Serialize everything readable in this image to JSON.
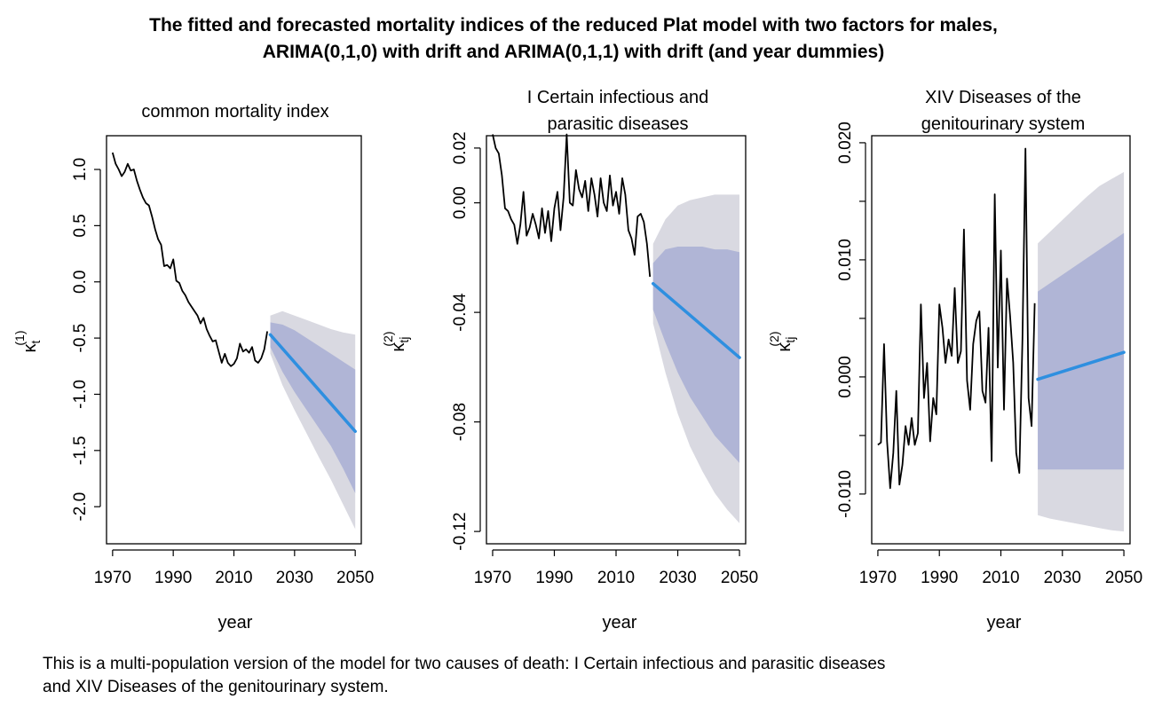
{
  "figure": {
    "title_line1": "The fitted and forecasted mortality indices of the reduced Plat model with two factors for males,",
    "title_line2": "ARIMA(0,1,0) with drift and ARIMA(0,1,1) with drift (and year dummies)",
    "caption_line1": "This is a multi-population version of the model for two causes of death: I Certain infectious and parasitic diseases",
    "caption_line2": "and XIV Diseases of the genitourinary system."
  },
  "colors": {
    "fitted": "#000000",
    "forecast": "#2e8fe0",
    "band80": "#b0b5d6",
    "band95": "#d9d9e1"
  },
  "chart_data": [
    {
      "type": "line",
      "title": "common mortality index",
      "xlabel": "year",
      "ylabel": "κt(1)",
      "ylabel_main": "κ",
      "ylabel_sub": "t",
      "ylabel_sup": "(1)",
      "xlim": [
        1968,
        2052
      ],
      "ylim": [
        -2.33,
        1.3
      ],
      "xticks": [
        1970,
        1990,
        2010,
        2030,
        2050
      ],
      "yticks": [
        -2.0,
        -1.5,
        -1.0,
        -0.5,
        0.0,
        0.5,
        1.0
      ],
      "ytick_labels": [
        "-2.0",
        "-1.5",
        "-1.0",
        "-0.5",
        "0.0",
        "0.5",
        "1.0"
      ],
      "grid": false,
      "fitted": {
        "x": [
          1970,
          1971,
          1972,
          1973,
          1974,
          1975,
          1976,
          1977,
          1978,
          1979,
          1980,
          1981,
          1982,
          1983,
          1984,
          1985,
          1986,
          1987,
          1988,
          1989,
          1990,
          1991,
          1992,
          1993,
          1994,
          1995,
          1996,
          1997,
          1998,
          1999,
          2000,
          2001,
          2002,
          2003,
          2004,
          2005,
          2006,
          2007,
          2008,
          2009,
          2010,
          2011,
          2012,
          2013,
          2014,
          2015,
          2016,
          2017,
          2018,
          2019,
          2020,
          2021
        ],
        "y": [
          1.15,
          1.05,
          1.0,
          0.94,
          0.98,
          1.05,
          0.99,
          1.0,
          0.9,
          0.82,
          0.75,
          0.7,
          0.68,
          0.58,
          0.47,
          0.38,
          0.33,
          0.14,
          0.15,
          0.12,
          0.2,
          0.01,
          -0.01,
          -0.08,
          -0.12,
          -0.18,
          -0.22,
          -0.26,
          -0.3,
          -0.37,
          -0.32,
          -0.42,
          -0.48,
          -0.53,
          -0.52,
          -0.62,
          -0.72,
          -0.64,
          -0.72,
          -0.75,
          -0.73,
          -0.68,
          -0.55,
          -0.62,
          -0.6,
          -0.63,
          -0.58,
          -0.7,
          -0.72,
          -0.68,
          -0.6,
          -0.44
        ]
      },
      "forecast": {
        "x": [
          2022,
          2050
        ],
        "y": [
          -0.47,
          -1.33
        ]
      },
      "pi80": {
        "x": [
          2022,
          2026,
          2030,
          2034,
          2038,
          2042,
          2046,
          2050
        ],
        "upper": [
          -0.36,
          -0.38,
          -0.43,
          -0.5,
          -0.57,
          -0.64,
          -0.71,
          -0.78
        ],
        "lower": [
          -0.58,
          -0.8,
          -0.98,
          -1.14,
          -1.3,
          -1.46,
          -1.66,
          -1.88
        ]
      },
      "pi95": {
        "x": [
          2022,
          2026,
          2030,
          2034,
          2038,
          2042,
          2046,
          2050
        ],
        "upper": [
          -0.3,
          -0.26,
          -0.3,
          -0.34,
          -0.38,
          -0.42,
          -0.45,
          -0.47
        ],
        "lower": [
          -0.64,
          -0.92,
          -1.14,
          -1.35,
          -1.56,
          -1.76,
          -1.98,
          -2.2
        ]
      }
    },
    {
      "type": "line",
      "title": "I Certain infectious and parasitic diseases",
      "title_line1": "I Certain infectious and",
      "title_line2": "parasitic diseases",
      "xlabel": "year",
      "ylabel": "κtj(2)",
      "ylabel_main": "κ",
      "ylabel_sub": "tj",
      "ylabel_sup": "(2)",
      "xlim": [
        1968,
        2052
      ],
      "ylim": [
        -0.1245,
        0.0245
      ],
      "xticks": [
        1970,
        1990,
        2010,
        2030,
        2050
      ],
      "yticks": [
        -0.12,
        -0.08,
        -0.04,
        0.0,
        0.02
      ],
      "ytick_labels": [
        "-0.12",
        "-0.08",
        "-0.04",
        "0.00",
        "0.02"
      ],
      "grid": false,
      "fitted": {
        "x": [
          1970,
          1971,
          1972,
          1973,
          1974,
          1975,
          1976,
          1977,
          1978,
          1979,
          1980,
          1981,
          1982,
          1983,
          1984,
          1985,
          1986,
          1987,
          1988,
          1989,
          1990,
          1991,
          1992,
          1993,
          1994,
          1995,
          1996,
          1997,
          1998,
          1999,
          2000,
          2001,
          2002,
          2003,
          2004,
          2005,
          2006,
          2007,
          2008,
          2009,
          2010,
          2011,
          2012,
          2013,
          2014,
          2015,
          2016,
          2017,
          2018,
          2019,
          2020,
          2021
        ],
        "y": [
          0.025,
          0.02,
          0.018,
          0.01,
          -0.002,
          -0.003,
          -0.006,
          -0.008,
          -0.015,
          -0.008,
          0.004,
          -0.012,
          -0.009,
          -0.004,
          -0.008,
          -0.013,
          -0.002,
          -0.011,
          -0.003,
          -0.014,
          -0.002,
          0.004,
          -0.01,
          0.002,
          0.025,
          0.0,
          -0.001,
          0.012,
          0.005,
          0.002,
          0.008,
          -0.003,
          0.009,
          0.003,
          -0.005,
          0.009,
          0.0,
          -0.003,
          0.01,
          -0.001,
          0.004,
          -0.004,
          0.009,
          0.003,
          -0.01,
          -0.013,
          -0.019,
          -0.005,
          -0.004,
          -0.007,
          -0.015,
          -0.027
        ]
      },
      "forecast": {
        "x": [
          2022,
          2050
        ],
        "y": [
          -0.0295,
          -0.0565
        ]
      },
      "pi80": {
        "x": [
          2022,
          2026,
          2030,
          2034,
          2038,
          2042,
          2046,
          2050
        ],
        "upper": [
          -0.022,
          -0.017,
          -0.016,
          -0.016,
          -0.016,
          -0.017,
          -0.017,
          -0.018
        ],
        "lower": [
          -0.039,
          -0.051,
          -0.062,
          -0.071,
          -0.078,
          -0.085,
          -0.09,
          -0.095
        ]
      },
      "pi95": {
        "x": [
          2022,
          2026,
          2030,
          2034,
          2038,
          2042,
          2046,
          2050
        ],
        "upper": [
          -0.015,
          -0.006,
          -0.001,
          0.001,
          0.002,
          0.003,
          0.003,
          0.003
        ],
        "lower": [
          -0.044,
          -0.062,
          -0.077,
          -0.089,
          -0.098,
          -0.106,
          -0.112,
          -0.117
        ]
      }
    },
    {
      "type": "line",
      "title": "XIV Diseases of the genitourinary system",
      "title_line1": "XIV Diseases of the",
      "title_line2": "genitourinary system",
      "xlabel": "year",
      "ylabel": "κtj(2)",
      "ylabel_main": "κ",
      "ylabel_sub": "tj",
      "ylabel_sup": "(2)",
      "xlim": [
        1968,
        2052
      ],
      "ylim": [
        -0.01425,
        0.0206
      ],
      "xticks": [
        1970,
        1990,
        2010,
        2030,
        2050
      ],
      "yticks": [
        -0.01,
        0.0,
        0.01,
        0.02
      ],
      "ytick_labels": [
        "-0.010",
        "0.000",
        "0.010",
        "0.020"
      ],
      "extra_yticks": [
        -0.005,
        0.005,
        0.015
      ],
      "grid": false,
      "fitted": {
        "x": [
          1970,
          1971,
          1972,
          1973,
          1974,
          1975,
          1976,
          1977,
          1978,
          1979,
          1980,
          1981,
          1982,
          1983,
          1984,
          1985,
          1986,
          1987,
          1988,
          1989,
          1990,
          1991,
          1992,
          1993,
          1994,
          1995,
          1996,
          1997,
          1998,
          1999,
          2000,
          2001,
          2002,
          2003,
          2004,
          2005,
          2006,
          2007,
          2008,
          2009,
          2010,
          2011,
          2012,
          2013,
          2014,
          2015,
          2016,
          2017,
          2018,
          2019,
          2020,
          2021
        ],
        "y": [
          -0.0058,
          -0.0056,
          0.0028,
          -0.0055,
          -0.0095,
          -0.0065,
          -0.0012,
          -0.0092,
          -0.0075,
          -0.0042,
          -0.0058,
          -0.0035,
          -0.0058,
          -0.0048,
          0.0062,
          -0.0018,
          0.0012,
          -0.0055,
          -0.0018,
          -0.0032,
          0.0062,
          0.0042,
          0.0012,
          0.0032,
          0.0018,
          0.0076,
          0.0012,
          0.0022,
          0.0126,
          -0.0003,
          -0.0028,
          0.0028,
          0.0048,
          0.0056,
          -0.0012,
          -0.0022,
          0.0042,
          -0.0072,
          0.0156,
          0.0008,
          0.0108,
          -0.0028,
          0.0084,
          0.0052,
          0.0012,
          -0.0065,
          -0.0082,
          0.0032,
          0.0195,
          -0.0018,
          -0.0042,
          0.0063
        ]
      },
      "forecast": {
        "x": [
          2022,
          2050
        ],
        "y": [
          -0.0002,
          0.0021
        ]
      },
      "pi80": {
        "x": [
          2022,
          2050
        ],
        "upper": [
          0.0073,
          0.0123
        ],
        "lower": [
          -0.0079,
          -0.0079
        ]
      },
      "pi95": {
        "x": [
          2022,
          2026,
          2030,
          2034,
          2038,
          2042,
          2046,
          2050
        ],
        "upper": [
          0.0114,
          0.0124,
          0.0134,
          0.0144,
          0.0154,
          0.0163,
          0.0169,
          0.0175
        ],
        "lower": [
          -0.0118,
          -0.0121,
          -0.0123,
          -0.0125,
          -0.0127,
          -0.0129,
          -0.0131,
          -0.0132
        ]
      }
    }
  ]
}
